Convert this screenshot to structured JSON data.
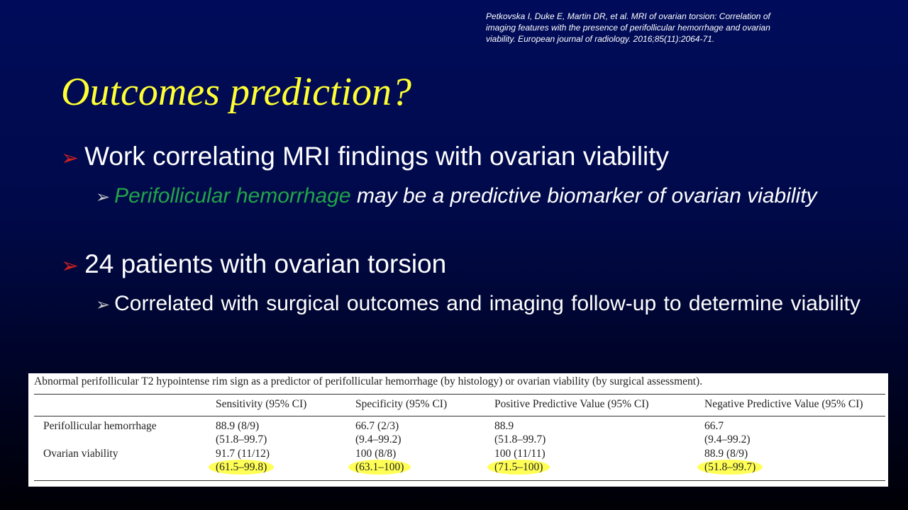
{
  "citation": "Petkovska I, Duke E, Martin DR, et al. MRI of ovarian torsion: Correlation of imaging features with the presence of perifollicular hemorrhage and ovarian viability. European journal of radiology. 2016;85(11):2064-71.",
  "title": "Outcomes prediction?",
  "bullets": [
    {
      "text": "Work correlating MRI findings with ovarian viability",
      "sub": [
        {
          "highlight": "Perifollicular hemorrhage",
          "rest": "may be a predictive biomarker of ovarian viability"
        }
      ]
    },
    {
      "text": "24 patients with ovarian torsion",
      "sub": [
        {
          "rest": "Correlated with surgical outcomes and imaging follow-up to determine viability"
        }
      ]
    }
  ],
  "table": {
    "caption": "Abnormal perifollicular T2 hypointense rim sign as a predictor of perifollicular hemorrhage (by histology) or ovarian viability (by surgical assessment).",
    "headers": [
      "",
      "Sensitivity (95% CI)",
      "Specificity (95% CI)",
      "Positive Predictive Value (95% CI)",
      "Negative Predictive Value (95% CI)"
    ],
    "rows": [
      [
        "Perifollicular hemorrhage",
        [
          "88.9 (8/9)",
          "(51.8–99.7)"
        ],
        [
          "66.7 (2/3)",
          "(9.4–99.2)"
        ],
        [
          "88.9",
          "(51.8–99.7)"
        ],
        [
          "66.7",
          "(9.4–99.2)"
        ]
      ],
      [
        "Ovarian viability",
        [
          "91.7 (11/12)",
          "(61.5–99.8)"
        ],
        [
          "100 (8/8)",
          "(63.1–100)"
        ],
        [
          "100 (11/11)",
          "(71.5–100)"
        ],
        [
          "88.9 (8/9)",
          "(51.8–99.7)"
        ]
      ]
    ]
  }
}
